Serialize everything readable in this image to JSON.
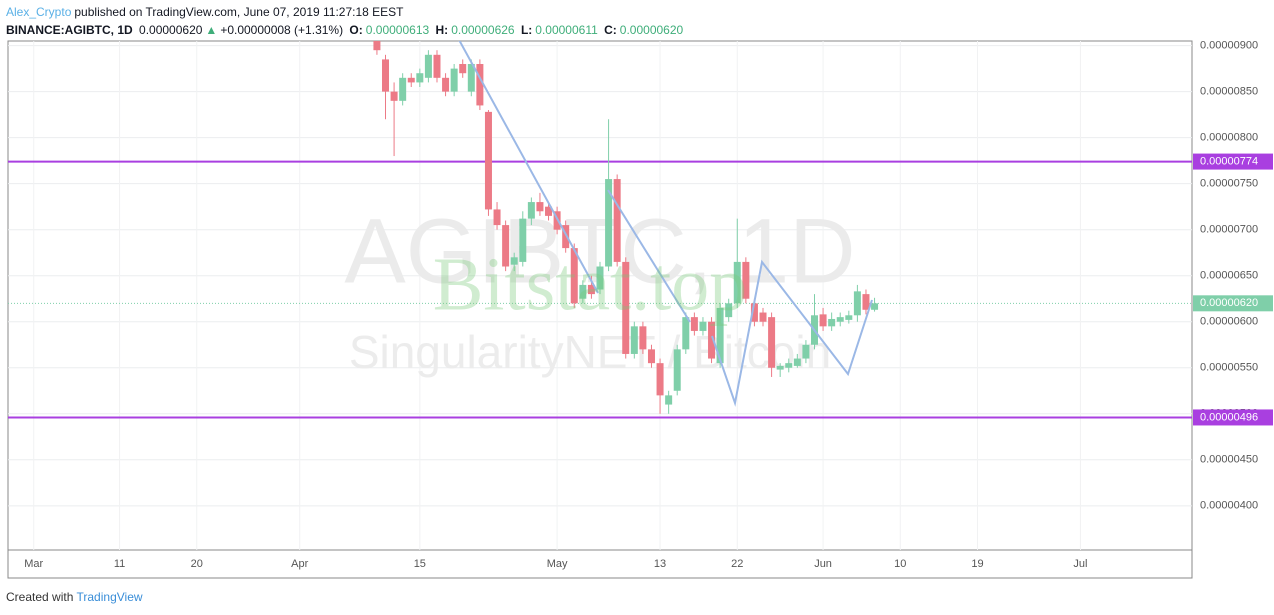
{
  "header": {
    "author": "Alex_Crypto",
    "published": "published on TradingView.com, June 07, 2019 11:27:18 EEST",
    "symbol": "BINANCE:AGIBTC, 1D",
    "last": "0.00000620",
    "arrow": "▲",
    "change": "+0.00000008 (+1.31%)",
    "o_label": "O:",
    "o": "0.00000613",
    "h_label": "H:",
    "h": "0.00000626",
    "l_label": "L:",
    "l": "0.00000611",
    "c_label": "C:",
    "c": "0.00000620"
  },
  "footer": {
    "created": "Created with",
    "brand": "TradingView"
  },
  "chart_data": {
    "type": "candlestick",
    "watermarks": {
      "symbol": "AGIBTC, 1D",
      "description": "SingularityNET / Bitcoin",
      "site": "Bitstat.top"
    },
    "up_color": "#7fcfa9",
    "down_color": "#ec7a86",
    "x": [
      "2019-04-10",
      "2019-04-11",
      "2019-04-12",
      "2019-04-13",
      "2019-04-14",
      "2019-04-15",
      "2019-04-16",
      "2019-04-17",
      "2019-04-18",
      "2019-04-19",
      "2019-04-20",
      "2019-04-21",
      "2019-04-22",
      "2019-04-23",
      "2019-04-24",
      "2019-04-25",
      "2019-04-26",
      "2019-04-27",
      "2019-04-28",
      "2019-04-29",
      "2019-04-30",
      "2019-05-01",
      "2019-05-02",
      "2019-05-03",
      "2019-05-04",
      "2019-05-05",
      "2019-05-06",
      "2019-05-07",
      "2019-05-08",
      "2019-05-09",
      "2019-05-10",
      "2019-05-11",
      "2019-05-12",
      "2019-05-13",
      "2019-05-14",
      "2019-05-15",
      "2019-05-16",
      "2019-05-17",
      "2019-05-18",
      "2019-05-19",
      "2019-05-20",
      "2019-05-21",
      "2019-05-22",
      "2019-05-23",
      "2019-05-24",
      "2019-05-25",
      "2019-05-26",
      "2019-05-27",
      "2019-05-28",
      "2019-05-29",
      "2019-05-30",
      "2019-05-31",
      "2019-06-01",
      "2019-06-02",
      "2019-06-03",
      "2019-06-04",
      "2019-06-05",
      "2019-06-06",
      "2019-06-07"
    ],
    "open": [
      9.05e-06,
      8.85e-06,
      8.5e-06,
      8.4e-06,
      8.65e-06,
      8.6e-06,
      8.65e-06,
      8.9e-06,
      8.65e-06,
      8.5e-06,
      8.8e-06,
      8.5e-06,
      8.8e-06,
      8.28e-06,
      7.22e-06,
      7.05e-06,
      6.62e-06,
      6.65e-06,
      7.12e-06,
      7.3e-06,
      7.25e-06,
      7.2e-06,
      7.05e-06,
      6.8e-06,
      6.25e-06,
      6.4e-06,
      6.35e-06,
      6.6e-06,
      7.55e-06,
      6.65e-06,
      5.65e-06,
      5.95e-06,
      5.7e-06,
      5.55e-06,
      5.1e-06,
      5.25e-06,
      5.7e-06,
      6.05e-06,
      5.9e-06,
      6e-06,
      5.55e-06,
      6.05e-06,
      6.2e-06,
      6.65e-06,
      6.2e-06,
      6.1e-06,
      6.05e-06,
      5.48e-06,
      5.5e-06,
      5.52e-06,
      5.6e-06,
      5.75e-06,
      6.08e-06,
      5.95e-06,
      6e-06,
      6.02e-06,
      6.07e-06,
      6.3e-06,
      6.13e-06
    ],
    "high": [
      9.15e-06,
      8.9e-06,
      8.6e-06,
      8.7e-06,
      8.7e-06,
      8.75e-06,
      8.95e-06,
      8.95e-06,
      8.7e-06,
      8.8e-06,
      8.85e-06,
      8.85e-06,
      8.85e-06,
      8.3e-06,
      7.3e-06,
      7.1e-06,
      6.75e-06,
      7.2e-06,
      7.35e-06,
      7.4e-06,
      7.3e-06,
      7.25e-06,
      7.1e-06,
      6.85e-06,
      6.45e-06,
      6.5e-06,
      6.65e-06,
      8.2e-06,
      7.6e-06,
      6.7e-06,
      6e-06,
      6e-06,
      5.75e-06,
      5.6e-06,
      5.25e-06,
      5.75e-06,
      6.1e-06,
      6.1e-06,
      6.05e-06,
      6.05e-06,
      6.2e-06,
      6.25e-06,
      7.12e-06,
      6.7e-06,
      6.25e-06,
      6.15e-06,
      6.1e-06,
      5.55e-06,
      5.6e-06,
      5.65e-06,
      5.8e-06,
      6.3e-06,
      6.15e-06,
      6.1e-06,
      6.1e-06,
      6.12e-06,
      6.4e-06,
      6.35e-06,
      6.26e-06
    ],
    "low": [
      8.9e-06,
      8.2e-06,
      7.8e-06,
      8.35e-06,
      8.55e-06,
      8.55e-06,
      8.6e-06,
      8.6e-06,
      8.45e-06,
      8.45e-06,
      8.65e-06,
      8.45e-06,
      8.3e-06,
      7.15e-06,
      7e-06,
      6.55e-06,
      6.55e-06,
      6.6e-06,
      7.05e-06,
      7.15e-06,
      7.1e-06,
      6.95e-06,
      6.75e-06,
      6.15e-06,
      6.2e-06,
      6.25e-06,
      6.3e-06,
      6.55e-06,
      6.6e-06,
      5.6e-06,
      5.6e-06,
      5.65e-06,
      5.5e-06,
      5e-06,
      5e-06,
      5.2e-06,
      5.65e-06,
      5.85e-06,
      5.85e-06,
      5.55e-06,
      5.5e-06,
      6e-06,
      6.15e-06,
      6.2e-06,
      5.95e-06,
      5.95e-06,
      5.4e-06,
      5.4e-06,
      5.45e-06,
      5.5e-06,
      5.55e-06,
      5.7e-06,
      5.9e-06,
      5.9e-06,
      5.95e-06,
      5.98e-06,
      6e-06,
      6.08e-06,
      6.11e-06
    ],
    "close": [
      8.95e-06,
      8.5e-06,
      8.4e-06,
      8.65e-06,
      8.6e-06,
      8.7e-06,
      8.9e-06,
      8.65e-06,
      8.5e-06,
      8.75e-06,
      8.7e-06,
      8.8e-06,
      8.35e-06,
      7.22e-06,
      7.05e-06,
      6.6e-06,
      6.7e-06,
      7.12e-06,
      7.3e-06,
      7.2e-06,
      7.15e-06,
      7e-06,
      6.8e-06,
      6.2e-06,
      6.4e-06,
      6.3e-06,
      6.6e-06,
      7.55e-06,
      6.65e-06,
      5.65e-06,
      5.95e-06,
      5.7e-06,
      5.55e-06,
      5.2e-06,
      5.2e-06,
      5.7e-06,
      6.05e-06,
      5.9e-06,
      6e-06,
      5.6e-06,
      6.15e-06,
      6.2e-06,
      6.65e-06,
      6.25e-06,
      6e-06,
      6e-06,
      5.5e-06,
      5.52e-06,
      5.55e-06,
      5.6e-06,
      5.75e-06,
      6.07e-06,
      5.95e-06,
      6.03e-06,
      6.05e-06,
      6.07e-06,
      6.33e-06,
      6.13e-06,
      6.2e-06
    ],
    "xlim": [
      "2019-02-26",
      "2019-07-14"
    ],
    "xticks": [
      {
        "value": "2019-03-01",
        "label": "Mar"
      },
      {
        "value": "2019-03-11",
        "label": "11"
      },
      {
        "value": "2019-03-20",
        "label": "20"
      },
      {
        "value": "2019-04-01",
        "label": "Apr"
      },
      {
        "value": "2019-04-15",
        "label": "15"
      },
      {
        "value": "2019-05-01",
        "label": "May"
      },
      {
        "value": "2019-05-13",
        "label": "13"
      },
      {
        "value": "2019-05-22",
        "label": "22"
      },
      {
        "value": "2019-06-01",
        "label": "Jun"
      },
      {
        "value": "2019-06-10",
        "label": "10"
      },
      {
        "value": "2019-06-19",
        "label": "19"
      },
      {
        "value": "2019-07-01",
        "label": "Jul"
      }
    ],
    "ylim": [
      3.52e-06,
      9.05e-06
    ],
    "yticks": [
      {
        "value": 4e-06,
        "label": "0.00000400"
      },
      {
        "value": 4.5e-06,
        "label": "0.00000450"
      },
      {
        "value": 5e-06,
        "label": "0.00000500"
      },
      {
        "value": 5.5e-06,
        "label": "0.00000550"
      },
      {
        "value": 6e-06,
        "label": "0.00000600"
      },
      {
        "value": 6.5e-06,
        "label": "0.00000650"
      },
      {
        "value": 7e-06,
        "label": "0.00000700"
      },
      {
        "value": 7.5e-06,
        "label": "0.00000750"
      },
      {
        "value": 8e-06,
        "label": "0.00000800"
      },
      {
        "value": 8.5e-06,
        "label": "0.00000850"
      },
      {
        "value": 9e-06,
        "label": "0.00000900"
      }
    ],
    "levels": [
      {
        "value": 7.74e-06,
        "label": "0.00000774"
      },
      {
        "value": 4.96e-06,
        "label": "0.00000496"
      }
    ],
    "level_color": "#a93fe0",
    "last_price": {
      "value": 6.2e-06,
      "label": "0.00000620"
    },
    "grid": true
  }
}
